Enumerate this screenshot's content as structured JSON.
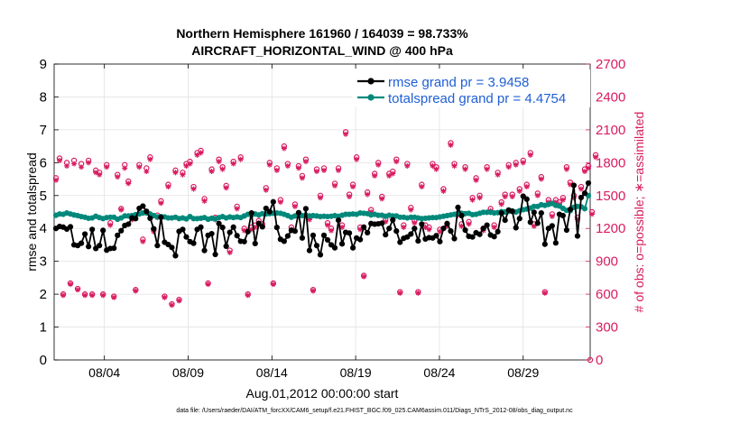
{
  "chart_data": {
    "type": "line",
    "title_line1": "Northern Hemisphere 161960 / 164039 = 98.733%",
    "title_line2": "AIRCRAFT_HORIZONTAL_WIND @ 400 hPa",
    "xlabel": "Aug.01,2012 00:00:00 start",
    "ylabel_left": "rmse and totalspread",
    "ylabel_right": "# of obs: o=possible; ∗=assimilated",
    "footer": "data file: /Users/raeder/DAI/ATM_forcXX/CAM6_setup/f.e21.FHIST_BGC.f09_025.CAM6assim.011/Diags_NTrS_2012-08/obs_diag_output.nc",
    "xlim": [
      0,
      32
    ],
    "ylim_left": [
      0,
      9
    ],
    "ylim_right": [
      0,
      2700
    ],
    "x_ticks": [
      3,
      8,
      13,
      18,
      23,
      28
    ],
    "x_tick_labels": [
      "08/04",
      "08/09",
      "08/14",
      "08/19",
      "08/24",
      "08/29"
    ],
    "y_ticks_left": [
      0,
      1,
      2,
      3,
      4,
      5,
      6,
      7,
      8,
      9
    ],
    "y_ticks_right": [
      0,
      300,
      600,
      900,
      1200,
      1500,
      1800,
      2100,
      2400,
      2700
    ],
    "grid": true,
    "legend_position": "top-right",
    "colors": {
      "rmse": "#000000",
      "spread": "#00897b",
      "obs": "#d81b60",
      "title": "#000000",
      "right_axis": "#d81b60",
      "legend_text": "#1f5fd6"
    },
    "series": [
      {
        "name": "rmse grand pr = 3.9458",
        "axis": "left",
        "values": [
          4.0,
          4.06,
          4.04,
          3.98,
          4.05,
          3.5,
          3.48,
          3.55,
          3.83,
          3.45,
          3.97,
          3.39,
          3.48,
          3.94,
          3.34,
          3.39,
          3.4,
          3.79,
          3.93,
          4.09,
          4.13,
          4.32,
          4.3,
          4.61,
          4.68,
          4.52,
          4.31,
          3.99,
          3.48,
          4.34,
          3.58,
          3.51,
          3.42,
          3.17,
          3.91,
          3.97,
          3.74,
          3.6,
          3.55,
          3.97,
          4.04,
          3.33,
          3.79,
          3.84,
          3.21,
          4.15,
          4.03,
          3.46,
          3.88,
          4.04,
          3.78,
          3.61,
          3.6,
          3.9,
          4.47,
          3.54,
          4.15,
          4.05,
          4.61,
          4.51,
          4.81,
          4.03,
          3.67,
          3.61,
          3.77,
          3.94,
          3.92,
          4.48,
          3.71,
          4.6,
          3.33,
          3.79,
          3.48,
          3.2,
          3.79,
          3.65,
          3.5,
          3.41,
          4.25,
          3.53,
          3.88,
          3.86,
          3.41,
          3.71,
          3.66,
          4.04,
          3.87,
          4.15,
          4.13,
          4.14,
          4.16,
          3.81,
          4.0,
          4.26,
          3.92,
          3.58,
          3.7,
          3.74,
          3.83,
          4.0,
          3.62,
          4.13,
          3.68,
          3.72,
          3.71,
          3.78,
          3.6,
          4.0,
          4.15,
          3.92,
          3.69,
          4.64,
          4.39,
          3.95,
          3.76,
          3.74,
          3.87,
          3.82,
          4.0,
          4.1,
          3.8,
          3.75,
          3.9,
          4.47,
          4.25,
          4.56,
          4.52,
          4.02,
          4.3,
          4.98,
          4.89,
          4.19,
          4.49,
          4.16,
          4.47,
          3.52,
          4.0,
          4.08,
          3.56,
          4.43,
          4.39,
          3.95,
          4.58,
          5.31,
          3.77,
          4.94,
          5.07,
          5.38
        ]
      },
      {
        "name": "totalspread grand pr = 4.4754",
        "axis": "left",
        "values": [
          4.4,
          4.44,
          4.43,
          4.47,
          4.44,
          4.41,
          4.39,
          4.36,
          4.34,
          4.31,
          4.32,
          4.37,
          4.33,
          4.3,
          4.33,
          4.34,
          4.34,
          4.28,
          4.32,
          4.38,
          4.38,
          4.39,
          4.42,
          4.44,
          4.47,
          4.47,
          4.44,
          4.39,
          4.35,
          4.36,
          4.35,
          4.32,
          4.32,
          4.34,
          4.3,
          4.32,
          4.29,
          4.36,
          4.3,
          4.3,
          4.31,
          4.33,
          4.28,
          4.31,
          4.29,
          4.33,
          4.36,
          4.32,
          4.35,
          4.33,
          4.35,
          4.33,
          4.38,
          4.43,
          4.41,
          4.44,
          4.41,
          4.45,
          4.44,
          4.45,
          4.46,
          4.47,
          4.46,
          4.43,
          4.39,
          4.34,
          4.38,
          4.39,
          4.39,
          4.4,
          4.38,
          4.39,
          4.38,
          4.36,
          4.37,
          4.36,
          4.37,
          4.39,
          4.37,
          4.4,
          4.43,
          4.43,
          4.44,
          4.43,
          4.47,
          4.46,
          4.45,
          4.41,
          4.43,
          4.4,
          4.4,
          4.37,
          4.4,
          4.38,
          4.38,
          4.34,
          4.34,
          4.32,
          4.34,
          4.34,
          4.32,
          4.3,
          4.31,
          4.32,
          4.33,
          4.33,
          4.35,
          4.37,
          4.39,
          4.41,
          4.43,
          4.45,
          4.46,
          4.45,
          4.46,
          4.42,
          4.43,
          4.46,
          4.49,
          4.49,
          4.49,
          4.47,
          4.48,
          4.51,
          4.5,
          4.52,
          4.53,
          4.5,
          4.54,
          4.57,
          4.59,
          4.62,
          4.67,
          4.67,
          4.72,
          4.7,
          4.73,
          4.76,
          4.7,
          4.68,
          4.61,
          4.55,
          4.54,
          4.64,
          4.67,
          4.66,
          4.6,
          5.0
        ]
      },
      {
        "name": "obs possible",
        "axis": "right",
        "marker": "o",
        "values": [
          1660,
          1840,
          600,
          1800,
          700,
          1820,
          650,
          1790,
          600,
          1820,
          600,
          1730,
          1710,
          600,
          1780,
          1250,
          580,
          1690,
          1380,
          1780,
          1630,
          1300,
          640,
          1780,
          1100,
          1750,
          1850,
          1190,
          1320,
          1450,
          580,
          1600,
          510,
          1730,
          550,
          1710,
          1790,
          1810,
          1580,
          1890,
          1910,
          1470,
          700,
          1740,
          1300,
          1830,
          1760,
          1590,
          1000,
          1810,
          1400,
          1850,
          1200,
          600,
          1210,
          1230,
          1270,
          1240,
          1570,
          1800,
          700,
          1750,
          1460,
          1950,
          1790,
          1210,
          1420,
          1770,
          1680,
          1830,
          1300,
          640,
          1740,
          1500,
          1750,
          1250,
          1200,
          1610,
          1750,
          1230,
          2080,
          1510,
          1600,
          1850,
          1210,
          770,
          1530,
          1370,
          1700,
          1800,
          1490,
          1280,
          1700,
          1720,
          1830,
          620,
          1230,
          1790,
          1390,
          1270,
          620,
          1600,
          1230,
          1210,
          1790,
          1760,
          1190,
          1560,
          1240,
          1980,
          1790,
          1340,
          1240,
          1760,
          1260,
          1480,
          1660,
          1500,
          1200,
          1760,
          1380,
          1230,
          1710,
          1440,
          1510,
          1780,
          1510,
          1800,
          1560,
          1820,
          1600,
          1890,
          1240,
          1520,
          1670,
          620,
          1460,
          1330,
          1460,
          1440,
          1480,
          1760,
          1620,
          1500,
          1300,
          1580,
          1740,
          1770,
          1350,
          1870
        ]
      },
      {
        "name": "obs assimilated",
        "axis": "right",
        "marker": "*",
        "values": [
          1640,
          1820,
          590,
          1770,
          690,
          1790,
          640,
          1760,
          590,
          1800,
          590,
          1710,
          1690,
          590,
          1760,
          1230,
          570,
          1670,
          1370,
          1750,
          1610,
          1280,
          630,
          1760,
          1080,
          1720,
          1830,
          1170,
          1300,
          1430,
          570,
          1580,
          500,
          1710,
          540,
          1690,
          1770,
          1790,
          1560,
          1870,
          1890,
          1450,
          690,
          1720,
          1280,
          1810,
          1740,
          1570,
          980,
          1790,
          1380,
          1830,
          1180,
          590,
          1190,
          1210,
          1250,
          1220,
          1550,
          1780,
          690,
          1730,
          1440,
          1930,
          1770,
          1190,
          1400,
          1750,
          1660,
          1810,
          1280,
          630,
          1720,
          1480,
          1730,
          1230,
          1180,
          1590,
          1730,
          1210,
          2060,
          1490,
          1580,
          1830,
          1190,
          760,
          1510,
          1350,
          1680,
          1780,
          1470,
          1260,
          1680,
          1700,
          1810,
          610,
          1210,
          1770,
          1370,
          1250,
          610,
          1580,
          1210,
          1190,
          1770,
          1740,
          1170,
          1540,
          1220,
          1960,
          1770,
          1320,
          1220,
          1740,
          1240,
          1460,
          1640,
          1480,
          1180,
          1740,
          1360,
          1210,
          1690,
          1420,
          1490,
          1760,
          1490,
          1780,
          1540,
          1800,
          1580,
          1870,
          1220,
          1500,
          1650,
          610,
          1440,
          1310,
          1440,
          1420,
          1460,
          1740,
          1600,
          1480,
          1280,
          1560,
          1720,
          1750,
          1330,
          1850
        ]
      }
    ]
  }
}
